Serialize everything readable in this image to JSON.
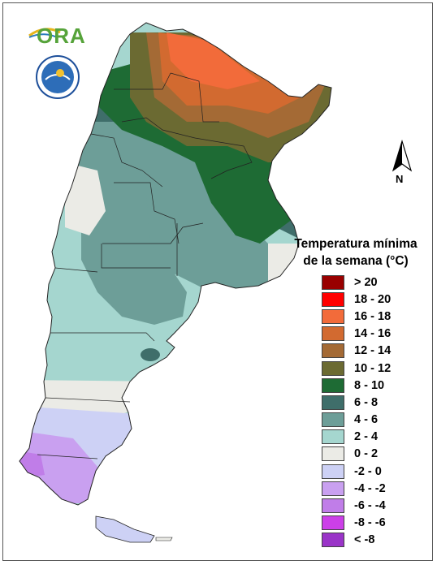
{
  "logo": {
    "text": "ORA"
  },
  "seal": {
    "text": "SERVICIO METEOROLÓGICO NACIONAL · ARGENTINA"
  },
  "north_arrow": {
    "label": "N"
  },
  "legend": {
    "title_line1": "Temperatura mínima",
    "title_line2": "de la semana (°C)",
    "items": [
      {
        "label": "> 20",
        "color": "#990000"
      },
      {
        "label": "18 - 20",
        "color": "#ff0000"
      },
      {
        "label": "16 - 18",
        "color": "#f26b3a"
      },
      {
        "label": "14 - 16",
        "color": "#d26a30"
      },
      {
        "label": "12 - 14",
        "color": "#a46a35"
      },
      {
        "label": "10 - 12",
        "color": "#6b6a32"
      },
      {
        "label": "8 - 10",
        "color": "#1e6b34"
      },
      {
        "label": "6 - 8",
        "color": "#3f6e6a"
      },
      {
        "label": "4 - 6",
        "color": "#6d9e98"
      },
      {
        "label": "2 - 4",
        "color": "#a5d6cf"
      },
      {
        "label": "0 - 2",
        "color": "#ebebe6"
      },
      {
        "label": "-2 - 0",
        "color": "#cdd1f5"
      },
      {
        "label": "-4 - -2",
        "color": "#c9a0f0"
      },
      {
        "label": "-6 - -4",
        "color": "#c07de8"
      },
      {
        "label": "-8 - -6",
        "color": "#cc3fe8"
      },
      {
        "label": "< -8",
        "color": "#9a34c8"
      }
    ]
  }
}
